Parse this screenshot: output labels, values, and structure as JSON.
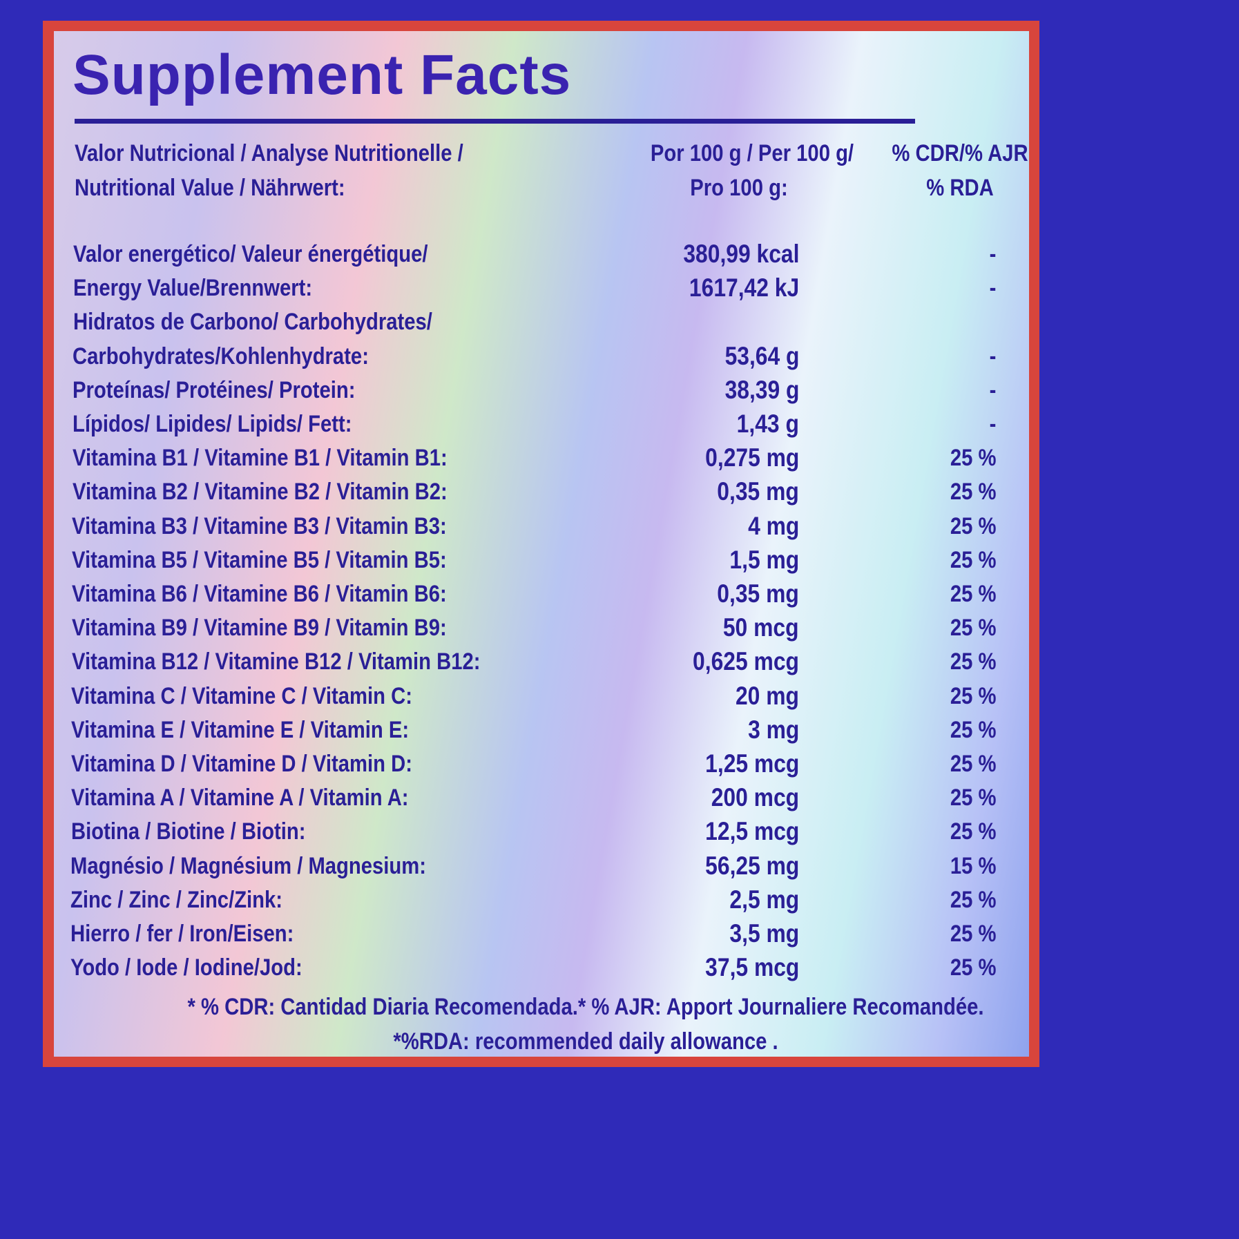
{
  "title": "Supplement Facts",
  "header": {
    "nutrient": [
      "Valor Nutricional / Analyse Nutritionelle /",
      "Nutritional Value / Nährwert:"
    ],
    "amount": [
      "Por 100 g / Per 100 g/",
      "Pro 100 g:"
    ],
    "rda": [
      "% CDR/% AJR",
      "% RDA"
    ]
  },
  "rows": [
    {
      "label": "Valor energético/ Valeur énergétique/",
      "amount": "380,99 kcal",
      "rda": "-"
    },
    {
      "label": "Energy Value/Brennwert:",
      "amount": "1617,42 kJ",
      "rda": "-"
    },
    {
      "label": "Hidratos de Carbono/ Carbohydrates/"
    },
    {
      "label": "Carbohydrates/Kohlenhydrate:",
      "amount": "53,64 g",
      "rda": "-"
    },
    {
      "label": "Proteínas/ Protéines/ Protein:",
      "amount": "38,39 g",
      "rda": "-"
    },
    {
      "label": "Lípidos/ Lipides/ Lipids/ Fett:",
      "amount": "1,43 g",
      "rda": "-"
    },
    {
      "label": "Vitamina B1 / Vitamine B1 / Vitamin B1:",
      "amount": "0,275 mg",
      "rda": "25 %"
    },
    {
      "label": "Vitamina B2 / Vitamine B2 / Vitamin B2:",
      "amount": "0,35 mg",
      "rda": "25 %"
    },
    {
      "label": "Vitamina B3 / Vitamine B3 / Vitamin B3:",
      "amount": "4 mg",
      "rda": "25 %"
    },
    {
      "label": "Vitamina B5 / Vitamine B5 / Vitamin B5:",
      "amount": "1,5 mg",
      "rda": "25 %"
    },
    {
      "label": "Vitamina B6 / Vitamine B6 / Vitamin B6:",
      "amount": "0,35 mg",
      "rda": "25 %"
    },
    {
      "label": "Vitamina B9 / Vitamine B9 / Vitamin B9:",
      "amount": "50 mcg",
      "rda": "25 %"
    },
    {
      "label": "Vitamina B12 / Vitamine B12 / Vitamin B12:",
      "amount": "0,625 mcg",
      "rda": "25 %"
    },
    {
      "label": "Vitamina C / Vitamine C / Vitamin C:",
      "amount": "20 mg",
      "rda": "25 %"
    },
    {
      "label": "Vitamina E / Vitamine E / Vitamin E:",
      "amount": "3 mg",
      "rda": "25 %"
    },
    {
      "label": "Vitamina D / Vitamine D / Vitamin D:",
      "amount": "1,25 mcg",
      "rda": "25 %"
    },
    {
      "label": "Vitamina A / Vitamine A / Vitamin A:",
      "amount": "200 mcg",
      "rda": "25 %"
    },
    {
      "label": "Biotina / Biotine / Biotin:",
      "amount": "12,5 mcg",
      "rda": "25 %"
    },
    {
      "label": "Magnésio / Magnésium / Magnesium:",
      "amount": "56,25 mg",
      "rda": "15 %"
    },
    {
      "label": "Zinc / Zinc / Zinc/Zink:",
      "amount": "2,5 mg",
      "rda": "25 %"
    },
    {
      "label": "Hierro / fer / Iron/Eisen:",
      "amount": "3,5 mg",
      "rda": "25 %"
    },
    {
      "label": "Yodo / Iode / Iodine/Jod:",
      "amount": "37,5 mcg",
      "rda": "25 %"
    }
  ],
  "footnotes": [
    "* % CDR: Cantidad Diaria Recomendada.* % AJR: Apport Journaliere Recomandée.",
    "*%RDA: recommended daily allowance ."
  ]
}
